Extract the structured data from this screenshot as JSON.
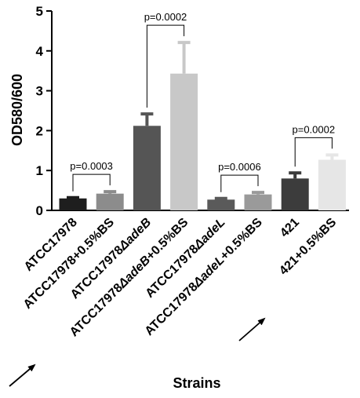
{
  "chart_data": {
    "type": "bar",
    "title": "",
    "xlabel": "Strains",
    "ylabel": "OD580/600",
    "ylim": [
      0,
      5
    ],
    "yticks": [
      0,
      1,
      2,
      3,
      4,
      5
    ],
    "grid": false,
    "categories": [
      {
        "pre": "ATCC17978",
        "ital": "",
        "post": ""
      },
      {
        "pre": "ATCC17978+0.5%BS",
        "ital": "",
        "post": ""
      },
      {
        "pre": "ATCC17978",
        "ital": "ΔadeB",
        "post": ""
      },
      {
        "pre": "ATCC17978",
        "ital": "ΔadeB",
        "post": "+0.5%BS"
      },
      {
        "pre": "ATCC17978",
        "ital": "ΔadeL",
        "post": ""
      },
      {
        "pre": "ATCC17978",
        "ital": "ΔadeL",
        "post": "+0.5%BS"
      },
      {
        "pre": "421",
        "ital": "",
        "post": ""
      },
      {
        "pre": "421+0.5%BS",
        "ital": "",
        "post": ""
      }
    ],
    "values": [
      0.3,
      0.42,
      2.12,
      3.43,
      0.27,
      0.4,
      0.8,
      1.27
    ],
    "errors": [
      0.02,
      0.05,
      0.3,
      0.78,
      0.03,
      0.05,
      0.14,
      0.12
    ],
    "colors": [
      "#1e1e1e",
      "#8c8c8c",
      "#555555",
      "#c8c8c8",
      "#5a5a5a",
      "#9a9a9a",
      "#3c3c3c",
      "#e6e6e6"
    ],
    "comparisons": [
      {
        "from": 0,
        "to": 1,
        "label": "p=0.0003"
      },
      {
        "from": 2,
        "to": 3,
        "label": "p=0.0002"
      },
      {
        "from": 4,
        "to": 5,
        "label": "p=0.0006"
      },
      {
        "from": 6,
        "to": 7,
        "label": "p=0.0002"
      }
    ],
    "highlighted_categories": [
      3,
      7
    ]
  }
}
